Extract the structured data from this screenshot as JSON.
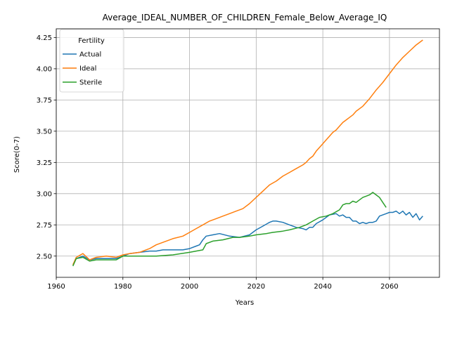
{
  "chart_data": {
    "type": "line",
    "title": "Average_IDEAL_NUMBER_OF_CHILDREN_Female_Below_Average_IQ",
    "xlabel": "Years",
    "ylabel": "Score(0-7)",
    "xlim": [
      1960,
      2075
    ],
    "ylim": [
      2.33,
      4.32
    ],
    "x_ticks": [
      1960,
      1980,
      2000,
      2020,
      2040,
      2060
    ],
    "y_ticks": [
      2.5,
      2.75,
      3.0,
      3.25,
      3.5,
      3.75,
      4.0,
      4.25
    ],
    "y_tick_labels": [
      "2.50",
      "2.75",
      "3.00",
      "3.25",
      "3.50",
      "3.75",
      "4.00",
      "4.25"
    ],
    "grid": true,
    "legend": {
      "title": "Fertility",
      "placement": "top-left"
    },
    "series": [
      {
        "name": "Actual",
        "color": "#1f77b4",
        "x": [
          1965,
          1966,
          1968,
          1970,
          1972,
          1975,
          1978,
          1980,
          1982,
          1985,
          1988,
          1990,
          1992,
          1995,
          1998,
          2000,
          2002,
          2003,
          2004,
          2005,
          2007,
          2009,
          2012,
          2015,
          2018,
          2020,
          2022,
          2024,
          2025,
          2026,
          2028,
          2030,
          2032,
          2034,
          2035,
          2036,
          2037,
          2038,
          2040,
          2042,
          2044,
          2045,
          2046,
          2047,
          2048,
          2049,
          2050,
          2051,
          2052,
          2053,
          2054,
          2055,
          2056,
          2057,
          2058,
          2059,
          2060,
          2061,
          2062,
          2063,
          2064,
          2065,
          2066,
          2067,
          2068,
          2069,
          2070
        ],
        "y": [
          2.43,
          2.48,
          2.5,
          2.47,
          2.48,
          2.48,
          2.48,
          2.5,
          2.52,
          2.53,
          2.54,
          2.54,
          2.55,
          2.55,
          2.55,
          2.56,
          2.58,
          2.59,
          2.63,
          2.66,
          2.67,
          2.68,
          2.66,
          2.65,
          2.67,
          2.71,
          2.74,
          2.77,
          2.78,
          2.78,
          2.77,
          2.75,
          2.73,
          2.72,
          2.71,
          2.73,
          2.73,
          2.76,
          2.79,
          2.83,
          2.84,
          2.82,
          2.83,
          2.81,
          2.81,
          2.78,
          2.78,
          2.76,
          2.77,
          2.76,
          2.77,
          2.77,
          2.78,
          2.82,
          2.83,
          2.84,
          2.85,
          2.85,
          2.86,
          2.84,
          2.86,
          2.83,
          2.85,
          2.81,
          2.84,
          2.79,
          2.82
        ]
      },
      {
        "name": "Ideal",
        "color": "#ff7f0e",
        "x": [
          1965,
          1966,
          1968,
          1970,
          1972,
          1975,
          1978,
          1980,
          1982,
          1985,
          1988,
          1990,
          1992,
          1995,
          1998,
          2000,
          2002,
          2004,
          2006,
          2008,
          2010,
          2012,
          2014,
          2016,
          2018,
          2020,
          2022,
          2024,
          2026,
          2028,
          2030,
          2032,
          2034,
          2035,
          2036,
          2037,
          2038,
          2039,
          2040,
          2041,
          2042,
          2043,
          2044,
          2045,
          2046,
          2047,
          2048,
          2049,
          2050,
          2052,
          2054,
          2056,
          2058,
          2060,
          2062,
          2064,
          2066,
          2068,
          2070
        ],
        "y": [
          2.43,
          2.49,
          2.52,
          2.47,
          2.49,
          2.5,
          2.49,
          2.51,
          2.52,
          2.53,
          2.56,
          2.59,
          2.61,
          2.64,
          2.66,
          2.69,
          2.72,
          2.75,
          2.78,
          2.8,
          2.82,
          2.84,
          2.86,
          2.88,
          2.92,
          2.97,
          3.02,
          3.07,
          3.1,
          3.14,
          3.17,
          3.2,
          3.23,
          3.25,
          3.28,
          3.3,
          3.34,
          3.37,
          3.4,
          3.43,
          3.46,
          3.49,
          3.51,
          3.54,
          3.57,
          3.59,
          3.61,
          3.63,
          3.66,
          3.7,
          3.76,
          3.83,
          3.89,
          3.96,
          4.03,
          4.09,
          4.14,
          4.19,
          4.23
        ]
      },
      {
        "name": "Sterile",
        "color": "#2ca02c",
        "x": [
          1965,
          1966,
          1968,
          1970,
          1972,
          1975,
          1978,
          1980,
          1985,
          1990,
          1995,
          2000,
          2002,
          2004,
          2005,
          2007,
          2010,
          2013,
          2015,
          2018,
          2020,
          2023,
          2025,
          2028,
          2030,
          2033,
          2035,
          2037,
          2039,
          2041,
          2043,
          2045,
          2046,
          2047,
          2048,
          2049,
          2050,
          2051,
          2052,
          2053,
          2054,
          2055,
          2056,
          2057,
          2058,
          2059
        ],
        "y": [
          2.42,
          2.48,
          2.49,
          2.46,
          2.47,
          2.47,
          2.47,
          2.5,
          2.5,
          2.5,
          2.51,
          2.53,
          2.54,
          2.55,
          2.6,
          2.62,
          2.63,
          2.65,
          2.65,
          2.66,
          2.67,
          2.68,
          2.69,
          2.7,
          2.71,
          2.73,
          2.75,
          2.78,
          2.81,
          2.82,
          2.84,
          2.87,
          2.91,
          2.92,
          2.92,
          2.94,
          2.93,
          2.95,
          2.97,
          2.98,
          2.99,
          3.01,
          2.99,
          2.97,
          2.93,
          2.89
        ]
      }
    ]
  }
}
